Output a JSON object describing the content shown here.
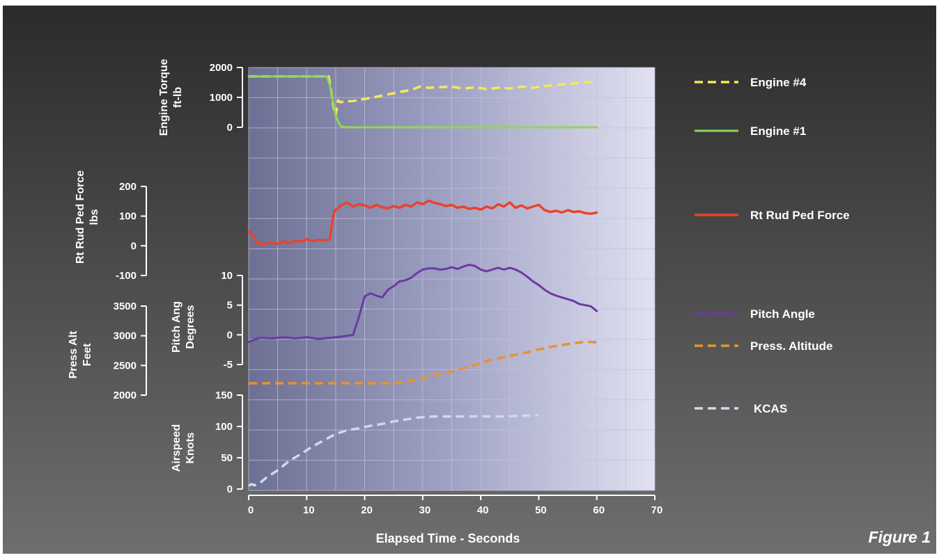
{
  "chart_data": {
    "type": "line",
    "xlabel": "Elapsed Time - Seconds",
    "x_ticks": [
      "0",
      "10",
      "20",
      "30",
      "40",
      "50",
      "60",
      "70"
    ],
    "xlim": [
      0,
      70
    ],
    "grid": true,
    "legend_position": "right",
    "figure_label": "Figure 1",
    "colors": {
      "background_top": "#2b2b2b",
      "background_bottom": "#6e6e6e",
      "plot_left": "#6d6f93",
      "plot_right": "#e1e1f1",
      "grid": "#bfc3dc",
      "axis": "#ffffff"
    },
    "axes": [
      {
        "id": "torque",
        "title_lines": [
          "Engine Torque",
          "ft-lb"
        ],
        "ticks": [
          "2000",
          "1000",
          "0"
        ],
        "ylim": [
          0,
          2000
        ]
      },
      {
        "id": "rudder",
        "title_lines": [
          "Rt Rud Ped Force",
          "lbs"
        ],
        "ticks": [
          "200",
          "100",
          "0",
          "-100"
        ],
        "ylim": [
          -100,
          200
        ]
      },
      {
        "id": "pitch",
        "title_lines": [
          "Pitch Ang",
          "Degrees"
        ],
        "ticks": [
          "10",
          "5",
          "0",
          "-5"
        ],
        "ylim": [
          -5,
          10
        ]
      },
      {
        "id": "alt",
        "title_lines": [
          "Press Alt",
          "Feet"
        ],
        "ticks": [
          "3500",
          "3000",
          "2500",
          "2000"
        ],
        "ylim": [
          2000,
          3500
        ]
      },
      {
        "id": "airspeed",
        "title_lines": [
          "Airspeed",
          "Knots"
        ],
        "ticks": [
          "150",
          "100",
          "50",
          "0"
        ],
        "ylim": [
          0,
          150
        ]
      }
    ],
    "series": [
      {
        "name": "Engine #4",
        "axis": "torque",
        "color": "#f2ea57",
        "dash": true,
        "width": 3.5,
        "x": [
          0,
          13.8,
          14.2,
          14.6,
          15.0,
          15.4,
          15.8,
          16.5,
          18,
          20,
          22,
          24,
          26,
          28,
          29.5,
          31,
          33,
          35,
          37,
          39,
          41,
          43,
          45,
          47,
          49,
          51,
          53,
          55,
          57,
          59,
          60
        ],
        "y": [
          1700,
          1700,
          1250,
          700,
          400,
          900,
          840,
          860,
          880,
          950,
          1020,
          1100,
          1180,
          1250,
          1360,
          1320,
          1340,
          1360,
          1290,
          1340,
          1280,
          1320,
          1300,
          1360,
          1320,
          1380,
          1420,
          1450,
          1480,
          1520,
          1500
        ]
      },
      {
        "name": "Engine #1",
        "axis": "torque",
        "color": "#8ed85a",
        "dash": false,
        "width": 3,
        "x": [
          0,
          13.5,
          14,
          14.5,
          15,
          15.5,
          16,
          17,
          60
        ],
        "y": [
          1700,
          1700,
          1400,
          900,
          400,
          150,
          20,
          0,
          0
        ]
      },
      {
        "name": "Rt Rud Ped Force",
        "axis": "rudder",
        "color": "#e8442b",
        "dash": false,
        "width": 3.5,
        "x": [
          0,
          0.5,
          1,
          1.5,
          2,
          3,
          4,
          5,
          6,
          7,
          8,
          9,
          10,
          11,
          12,
          13,
          14,
          14.4,
          14.8,
          15.2,
          15.6,
          16,
          17,
          18,
          19,
          20,
          21,
          22,
          23,
          24,
          25,
          26,
          27,
          28,
          29,
          30,
          31,
          32,
          33,
          34,
          35,
          36,
          37,
          38,
          39,
          40,
          41,
          42,
          43,
          44,
          45,
          46,
          47,
          48,
          49,
          50,
          51,
          52,
          53,
          54,
          55,
          56,
          57,
          58,
          59,
          60
        ],
        "y": [
          48,
          40,
          25,
          10,
          5,
          8,
          12,
          6,
          15,
          10,
          18,
          14,
          22,
          16,
          20,
          18,
          22,
          80,
          118,
          124,
          130,
          138,
          145,
          132,
          140,
          136,
          128,
          138,
          130,
          126,
          134,
          128,
          138,
          132,
          146,
          140,
          152,
          145,
          140,
          134,
          138,
          128,
          132,
          124,
          128,
          122,
          132,
          126,
          140,
          132,
          146,
          128,
          136,
          126,
          132,
          138,
          120,
          114,
          118,
          112,
          120,
          114,
          116,
          110,
          108,
          112
        ]
      },
      {
        "name": "Pitch Angle",
        "axis": "pitch",
        "color": "#6b39a4",
        "dash": false,
        "width": 3,
        "x": [
          0,
          1,
          2,
          4,
          6,
          8,
          10,
          12,
          14,
          16,
          18,
          19,
          20,
          21,
          22,
          23,
          24,
          25,
          26,
          27,
          28,
          29,
          30,
          31,
          32,
          33,
          34,
          35,
          36,
          37,
          38,
          39,
          40,
          41,
          42,
          43,
          44,
          45,
          46,
          47,
          48,
          49,
          50,
          51,
          52,
          53,
          54,
          55,
          56,
          57,
          58,
          59,
          60
        ],
        "y": [
          -1.2,
          -0.8,
          -0.5,
          -0.6,
          -0.4,
          -0.6,
          -0.4,
          -0.7,
          -0.5,
          -0.3,
          0.0,
          3.0,
          6.5,
          7.0,
          6.6,
          6.3,
          7.6,
          8.2,
          9.0,
          9.2,
          9.6,
          10.4,
          11.0,
          11.2,
          11.2,
          11.0,
          11.1,
          11.4,
          11.1,
          11.5,
          11.8,
          11.6,
          11.0,
          10.7,
          11.0,
          11.3,
          11.0,
          11.3,
          11.0,
          10.5,
          9.8,
          9.0,
          8.4,
          7.6,
          7.0,
          6.6,
          6.3,
          6.0,
          5.7,
          5.2,
          5.0,
          4.8,
          4.0
        ]
      },
      {
        "name": "Press. Altitude",
        "axis": "alt",
        "color": "#e8922f",
        "dash": true,
        "width": 3.5,
        "x": [
          0,
          5,
          10,
          15,
          20,
          25,
          26,
          28,
          30,
          32,
          35,
          38,
          40,
          42,
          45,
          48,
          50,
          52,
          55,
          58,
          60
        ],
        "y": [
          2200,
          2200,
          2200,
          2200,
          2200,
          2200,
          2210,
          2240,
          2280,
          2330,
          2400,
          2480,
          2540,
          2600,
          2660,
          2720,
          2770,
          2810,
          2860,
          2900,
          2890
        ]
      },
      {
        "name": "KCAS",
        "axis": "airspeed",
        "color": "#c8dcf0",
        "dash": true,
        "width": 3.5,
        "x": [
          0,
          0.5,
          1,
          2,
          3,
          5,
          7,
          9,
          11,
          13,
          15,
          17,
          19,
          21,
          23,
          25,
          27,
          29,
          32,
          35,
          38,
          41,
          44,
          47,
          50
        ],
        "y": [
          5,
          8,
          6,
          10,
          18,
          30,
          45,
          56,
          68,
          78,
          88,
          94,
          97,
          101,
          104,
          108,
          111,
          114,
          116,
          116,
          116,
          116,
          116,
          117,
          118
        ]
      }
    ]
  }
}
